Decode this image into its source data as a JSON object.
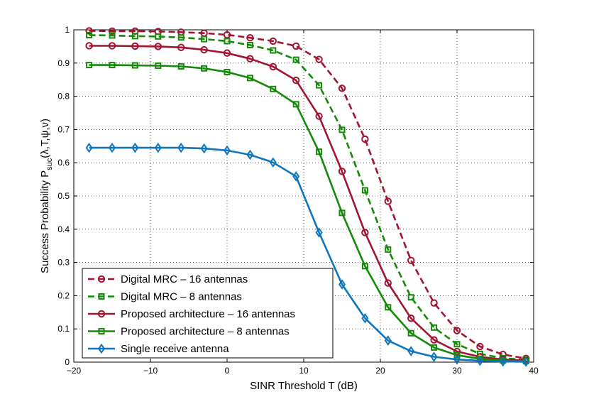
{
  "chart_data": {
    "type": "line",
    "title": "",
    "xlabel": "SINR Threshold T (dB)",
    "ylabel_main": "Success Probability P",
    "ylabel_sub": "suc",
    "ylabel_args": "(λ,T,ψ,ν)",
    "xlim": [
      -20,
      40
    ],
    "ylim": [
      0,
      1
    ],
    "xticks": [
      -20,
      -10,
      0,
      10,
      20,
      30,
      40
    ],
    "xtick_labels": [
      "−20",
      "−10",
      "0",
      "10",
      "20",
      "30",
      "40"
    ],
    "yticks": [
      0,
      0.1,
      0.2,
      0.3,
      0.4,
      0.5,
      0.6,
      0.7,
      0.8,
      0.9,
      1
    ],
    "ytick_labels": [
      "0",
      "0.1",
      "0.2",
      "0.3",
      "0.4",
      "0.5",
      "0.6",
      "0.7",
      "0.8",
      "0.9",
      "1"
    ],
    "grid": true,
    "legend_position": "bottom-left",
    "x": [
      -18,
      -15,
      -12,
      -9,
      -6,
      -3,
      0,
      3,
      6,
      9,
      12,
      15,
      18,
      21,
      24,
      27,
      30,
      33,
      36,
      39
    ],
    "series": [
      {
        "name": "Digital MRC – 16 antennas",
        "color": "#a2142f",
        "dash": "dashed",
        "marker": "circle",
        "values": [
          0.997,
          0.996,
          0.996,
          0.995,
          0.993,
          0.99,
          0.985,
          0.976,
          0.966,
          0.951,
          0.911,
          0.824,
          0.671,
          0.484,
          0.306,
          0.178,
          0.095,
          0.047,
          0.023,
          0.011
        ]
      },
      {
        "name": "Digital MRC – 8 antennas",
        "color": "#138a08",
        "dash": "dashed",
        "marker": "square",
        "values": [
          0.984,
          0.983,
          0.981,
          0.98,
          0.977,
          0.972,
          0.966,
          0.954,
          0.938,
          0.91,
          0.833,
          0.699,
          0.517,
          0.339,
          0.195,
          0.104,
          0.054,
          0.025,
          0.012,
          0.007
        ]
      },
      {
        "name": "Proposed architecture – 16 antennas",
        "color": "#a2142f",
        "dash": "solid",
        "marker": "circle",
        "values": [
          0.952,
          0.952,
          0.951,
          0.95,
          0.947,
          0.94,
          0.93,
          0.913,
          0.889,
          0.848,
          0.74,
          0.574,
          0.39,
          0.238,
          0.132,
          0.067,
          0.032,
          0.016,
          0.008,
          0.005
        ]
      },
      {
        "name": "Proposed architecture – 8 antennas",
        "color": "#138a08",
        "dash": "solid",
        "marker": "square",
        "values": [
          0.894,
          0.894,
          0.893,
          0.892,
          0.89,
          0.884,
          0.873,
          0.855,
          0.822,
          0.776,
          0.633,
          0.449,
          0.289,
          0.165,
          0.087,
          0.044,
          0.021,
          0.01,
          0.005,
          0.003
        ]
      },
      {
        "name": "Single receive antenna",
        "color": "#0f75bd",
        "dash": "solid",
        "marker": "diamond",
        "values": [
          0.645,
          0.645,
          0.645,
          0.645,
          0.645,
          0.643,
          0.637,
          0.624,
          0.601,
          0.559,
          0.39,
          0.234,
          0.132,
          0.065,
          0.033,
          0.016,
          0.008,
          0.004,
          0.002,
          0.001
        ]
      }
    ]
  }
}
